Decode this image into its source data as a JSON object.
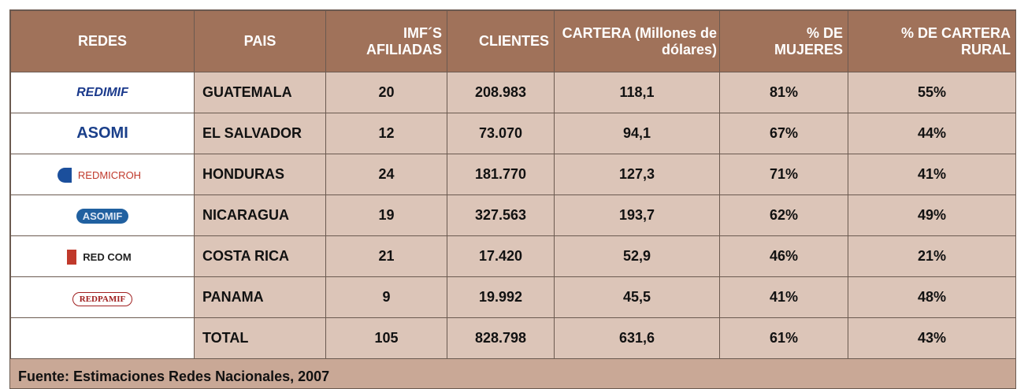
{
  "table": {
    "headers": [
      "REDES",
      "PAIS",
      "IMF´S AFILIADAS",
      "CLIENTES",
      "CARTERA (Millones de dólares)",
      "% DE MUJERES",
      "% DE CARTERA RURAL"
    ],
    "rows": [
      {
        "logo": "REDIMIF",
        "cells": [
          "GUATEMALA",
          "20",
          "208.983",
          "118,1",
          "81%",
          "55%"
        ]
      },
      {
        "logo": "ASOMI",
        "cells": [
          "EL SALVADOR",
          "12",
          "73.070",
          "94,1",
          "67%",
          "44%"
        ]
      },
      {
        "logo": "REDMICROH",
        "cells": [
          "HONDURAS",
          "24",
          "181.770",
          "127,3",
          "71%",
          "41%"
        ]
      },
      {
        "logo": "ASOMIF",
        "cells": [
          "NICARAGUA",
          "19",
          "327.563",
          "193,7",
          "62%",
          "49%"
        ]
      },
      {
        "logo": "RED COM",
        "cells": [
          "COSTA RICA",
          "21",
          "17.420",
          "52,9",
          "46%",
          "21%"
        ]
      },
      {
        "logo": "REDPAMIF",
        "cells": [
          "PANAMA",
          "9",
          "19.992",
          "45,5",
          "41%",
          "48%"
        ]
      },
      {
        "cells": [
          "TOTAL",
          "105",
          "828.798",
          "631,6",
          "61%",
          "43%"
        ]
      }
    ],
    "source": "Fuente: Estimaciones Redes Nacionales, 2007"
  }
}
